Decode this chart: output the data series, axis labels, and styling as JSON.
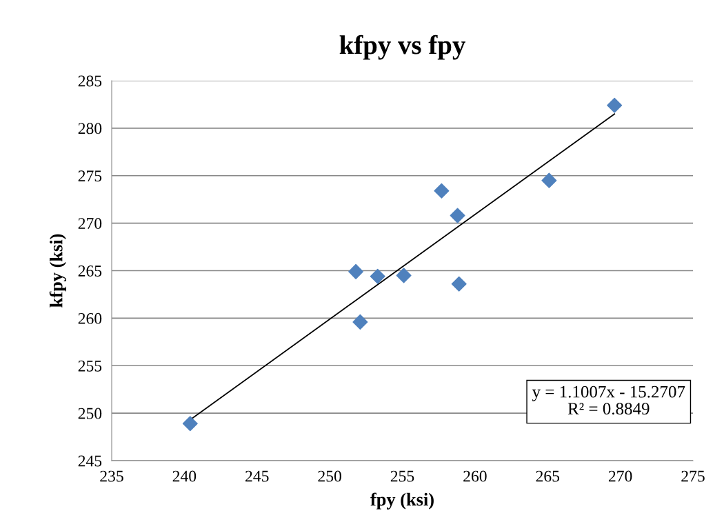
{
  "chart_data": {
    "type": "scatter",
    "title": "kfpy vs fpy",
    "xlabel": "fpy (ksi)",
    "ylabel": "kfpy (ksi)",
    "xlim": [
      235,
      275
    ],
    "xticks": [
      235,
      240,
      245,
      250,
      255,
      260,
      265,
      270,
      275
    ],
    "ylim": [
      245,
      285
    ],
    "yticks": [
      245,
      250,
      255,
      260,
      265,
      270,
      275,
      280,
      285
    ],
    "grid": "y",
    "legend": false,
    "series": [
      {
        "marker": "diamond",
        "color": "#4f81bd",
        "x": [
          240.4,
          251.8,
          252.1,
          253.3,
          255.1,
          257.7,
          258.8,
          258.9,
          265.1,
          269.6
        ],
        "values": [
          248.9,
          264.9,
          259.6,
          264.4,
          264.5,
          273.4,
          270.8,
          263.6,
          274.5,
          282.4
        ]
      },
      {
        "type": "line",
        "color": "#000000",
        "x": [
          240.4,
          269.6
        ],
        "values": [
          249.3,
          281.5
        ]
      }
    ],
    "annotations": [
      "y = 1.1007x - 15.2707\nR² = 0.8849"
    ]
  }
}
